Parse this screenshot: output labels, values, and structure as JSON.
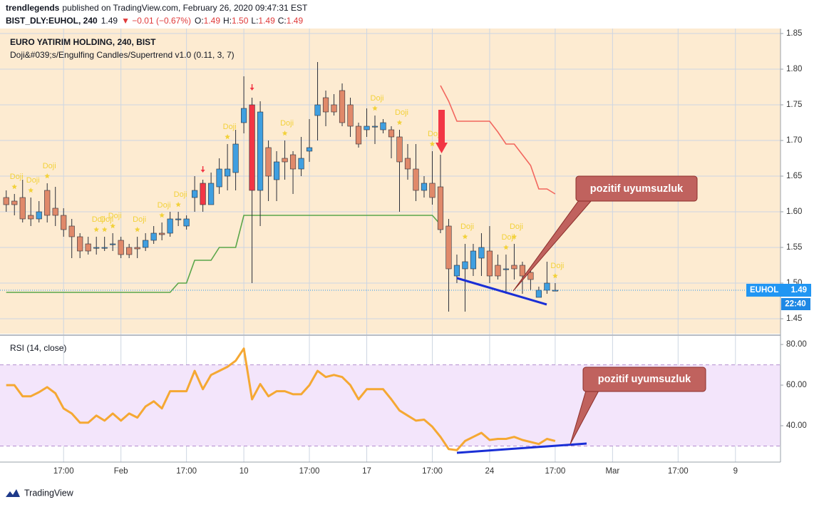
{
  "header": {
    "author": "trendlegends",
    "published": "published on TradingView.com, February 26, 2020 09:47:31 EST",
    "symbol": "BIST_DLY:EUHOL, 240",
    "last": "1.49",
    "change": "▼ −0.01 (−0.67%)",
    "ohlc": [
      {
        "label": "O:",
        "value": "1.49"
      },
      {
        "label": "H:",
        "value": "1.50"
      },
      {
        "label": "L:",
        "value": "1.49"
      },
      {
        "label": "C:",
        "value": "1.49"
      }
    ]
  },
  "chart_data": [
    {
      "type": "candlestick",
      "title": "EURO YATIRIM HOLDING, 240, BIST",
      "subtitle": "Doji&#039;s/Engulfing Candles/Supertrend v1.0 (0.11, 3, 7)",
      "categories": [
        null,
        null,
        null,
        null,
        null,
        null,
        null,
        "17:00",
        null,
        null,
        null,
        null,
        null,
        null,
        "Feb",
        null,
        null,
        null,
        null,
        null,
        null,
        null,
        "17:00",
        null,
        null,
        null,
        null,
        null,
        null,
        "10",
        null,
        null,
        null,
        null,
        null,
        null,
        null,
        "17:00",
        null,
        null,
        null,
        null,
        null,
        null,
        "17",
        null,
        null,
        null,
        null,
        null,
        null,
        null,
        "17:00",
        null,
        null,
        null,
        null,
        null,
        null,
        "24",
        null,
        null,
        null,
        null,
        null,
        null,
        null,
        "17:00",
        null,
        null,
        null,
        null,
        null,
        null,
        "Mar",
        null,
        null,
        null,
        null,
        null,
        null,
        null,
        "17:00",
        null,
        null,
        null,
        null,
        null,
        null,
        "9",
        null,
        null,
        null,
        null,
        null
      ],
      "open": [
        1.62,
        1.615,
        1.62,
        1.595,
        1.59,
        1.63,
        1.605,
        1.595,
        1.58,
        1.565,
        1.555,
        1.55,
        1.55,
        1.555,
        1.56,
        1.55,
        1.55,
        1.55,
        1.56,
        1.57,
        1.57,
        1.59,
        1.58,
        1.62,
        1.64,
        1.61,
        1.635,
        1.65,
        1.655,
        1.725,
        1.75,
        1.63,
        1.69,
        1.645,
        1.675,
        1.68,
        1.66,
        1.685,
        1.735,
        1.76,
        1.75,
        1.77,
        1.75,
        1.72,
        1.715,
        1.72,
        1.715,
        1.715,
        1.705,
        1.675,
        1.66,
        1.63,
        1.64,
        1.635,
        1.58,
        1.51,
        1.52,
        1.52,
        1.535,
        1.545,
        1.525,
        1.52,
        1.525,
        1.525,
        1.515,
        1.48,
        1.49,
        1.49,
        null,
        null,
        null,
        null,
        null,
        null,
        null,
        null,
        null,
        null,
        null,
        null,
        null,
        null,
        null,
        null,
        null,
        null,
        null,
        null,
        null,
        null,
        null,
        null,
        null,
        null,
        null
      ],
      "high": [
        1.63,
        1.625,
        1.645,
        1.62,
        1.615,
        1.64,
        1.635,
        1.605,
        1.59,
        1.57,
        1.565,
        1.565,
        1.565,
        1.57,
        1.565,
        1.555,
        1.565,
        1.57,
        1.58,
        1.585,
        1.6,
        1.6,
        1.595,
        1.65,
        1.645,
        1.655,
        1.675,
        1.695,
        1.715,
        1.79,
        1.76,
        1.755,
        1.7,
        1.685,
        1.7,
        1.685,
        1.705,
        1.73,
        1.81,
        1.77,
        1.765,
        1.78,
        1.76,
        1.725,
        1.745,
        1.735,
        1.73,
        1.72,
        1.715,
        1.695,
        1.695,
        1.65,
        1.685,
        1.68,
        1.59,
        1.54,
        1.555,
        1.555,
        1.57,
        1.58,
        1.54,
        1.54,
        1.555,
        1.53,
        1.52,
        1.495,
        1.53,
        1.5,
        null,
        null,
        null,
        null,
        null,
        null,
        null,
        null,
        null,
        null,
        null,
        null,
        null,
        null,
        null,
        null,
        null,
        null,
        null,
        null,
        null,
        null,
        null,
        null,
        null,
        null,
        null
      ],
      "low": [
        1.6,
        1.595,
        1.585,
        1.58,
        1.585,
        1.585,
        1.58,
        1.565,
        1.535,
        1.535,
        1.54,
        1.54,
        1.545,
        1.545,
        1.535,
        1.535,
        1.535,
        1.545,
        1.555,
        1.56,
        1.565,
        1.58,
        1.575,
        1.6,
        1.6,
        1.61,
        1.625,
        1.63,
        1.63,
        1.71,
        1.5,
        1.58,
        1.615,
        1.615,
        1.645,
        1.625,
        1.65,
        1.67,
        1.7,
        1.72,
        1.735,
        1.72,
        1.705,
        1.69,
        1.705,
        1.695,
        1.71,
        1.675,
        1.6,
        1.645,
        1.615,
        1.62,
        1.61,
        1.57,
        1.46,
        1.5,
        1.46,
        1.51,
        1.51,
        1.5,
        1.505,
        1.485,
        1.505,
        1.485,
        1.49,
        1.48,
        1.485,
        1.49,
        null,
        null,
        null,
        null,
        null,
        null,
        null,
        null,
        null,
        null,
        null,
        null,
        null,
        null,
        null,
        null,
        null,
        null,
        null,
        null,
        null,
        null,
        null,
        null,
        null,
        null,
        null
      ],
      "close": [
        1.61,
        1.61,
        1.59,
        1.59,
        1.6,
        1.595,
        1.595,
        1.575,
        1.565,
        1.545,
        1.545,
        1.55,
        1.55,
        1.555,
        1.54,
        1.54,
        1.548,
        1.56,
        1.57,
        1.568,
        1.59,
        1.59,
        1.59,
        1.63,
        1.61,
        1.64,
        1.66,
        1.66,
        1.695,
        1.745,
        1.63,
        1.74,
        1.65,
        1.67,
        1.67,
        1.66,
        1.675,
        1.69,
        1.75,
        1.74,
        1.74,
        1.725,
        1.72,
        1.695,
        1.72,
        1.72,
        1.725,
        1.705,
        1.67,
        1.66,
        1.63,
        1.64,
        1.62,
        1.575,
        1.52,
        1.525,
        1.53,
        1.545,
        1.55,
        1.51,
        1.51,
        1.52,
        1.52,
        1.51,
        1.505,
        1.49,
        1.5,
        1.49,
        null,
        null,
        null,
        null,
        null,
        null,
        null,
        null,
        null,
        null,
        null,
        null,
        null,
        null,
        null,
        null,
        null,
        null,
        null,
        null,
        null,
        null,
        null,
        null,
        null,
        null,
        null
      ],
      "supertrend_up": [
        1.487,
        1.487,
        1.487,
        1.487,
        1.487,
        1.487,
        1.487,
        1.487,
        1.487,
        1.487,
        1.487,
        1.487,
        1.487,
        1.487,
        1.487,
        1.487,
        1.487,
        1.487,
        1.487,
        1.487,
        1.487,
        1.5,
        1.5,
        1.532,
        1.532,
        1.532,
        1.55,
        1.55,
        1.55,
        1.595,
        1.595,
        1.595,
        1.595,
        1.595,
        1.595,
        1.595,
        1.595,
        1.595,
        1.595,
        1.595,
        1.595,
        1.595,
        1.595,
        1.595,
        1.595,
        1.595,
        1.595,
        1.595,
        1.595,
        1.595,
        1.595,
        1.595,
        1.595,
        1.582,
        null,
        null,
        null,
        null,
        null,
        null,
        null,
        null,
        null,
        null,
        null,
        null,
        null,
        null,
        null,
        null,
        null,
        null,
        null,
        null,
        null,
        null,
        null,
        null,
        null,
        null,
        null,
        null,
        null,
        null,
        null,
        null,
        null,
        null,
        null,
        null,
        null,
        null,
        null,
        null,
        null
      ],
      "supertrend_down": [
        null,
        null,
        null,
        null,
        null,
        null,
        null,
        null,
        null,
        null,
        null,
        null,
        null,
        null,
        null,
        null,
        null,
        null,
        null,
        null,
        null,
        null,
        null,
        null,
        null,
        null,
        null,
        null,
        null,
        null,
        null,
        null,
        null,
        null,
        null,
        null,
        null,
        null,
        null,
        null,
        null,
        null,
        null,
        null,
        null,
        null,
        null,
        null,
        null,
        null,
        null,
        null,
        null,
        1.777,
        1.755,
        1.727,
        1.727,
        1.727,
        1.727,
        1.727,
        1.712,
        1.695,
        1.695,
        1.68,
        1.665,
        1.632,
        1.632,
        1.625,
        null,
        null,
        null,
        null,
        null,
        null,
        null,
        null,
        null,
        null,
        null,
        null,
        null,
        null,
        null,
        null,
        null,
        null,
        null,
        null,
        null,
        null,
        null,
        null,
        null,
        null,
        null
      ],
      "doji": [
        null,
        "Doji",
        null,
        "Doji",
        null,
        "Doji",
        null,
        null,
        null,
        null,
        null,
        "Doji",
        "Doji",
        "Doji",
        null,
        null,
        "Doji",
        null,
        null,
        "Doji",
        null,
        "Doji",
        null,
        null,
        null,
        null,
        null,
        "Doji",
        null,
        null,
        null,
        null,
        null,
        null,
        "Doji",
        null,
        null,
        null,
        null,
        null,
        null,
        null,
        null,
        null,
        null,
        "Doji",
        null,
        null,
        "Doji",
        null,
        null,
        null,
        "Doji",
        null,
        null,
        null,
        "Doji",
        null,
        null,
        null,
        null,
        "Doji",
        "Doji",
        null,
        null,
        null,
        null,
        "Doji",
        null,
        null,
        null,
        null,
        null,
        null,
        null,
        null,
        null,
        null,
        null,
        null,
        null,
        null,
        null,
        null,
        null,
        null,
        null,
        null,
        null,
        null,
        null,
        null,
        null,
        null,
        null
      ],
      "engulfing": [
        24,
        30
      ],
      "up_color": "#3f9fe0",
      "down_color": "#e0896a",
      "engulfing_color": "#f23645",
      "supertrend_up_color": "#5aa64a",
      "supertrend_down_color": "#f2665e",
      "doji_color": "#f2d13a",
      "background": "#fdebd1",
      "grid": true,
      "ylim": [
        1.429,
        1.857
      ],
      "yticks": [
        1.45,
        {
          "value": 1.5,
          "label": "1.50"
        },
        1.55,
        {
          "value": 1.6,
          "label": "1.60"
        },
        1.65,
        {
          "value": 1.7,
          "label": "1.70"
        },
        1.75,
        {
          "value": 1.8,
          "label": "1.80"
        },
        1.85
      ],
      "last_price": 1.49,
      "price_tag": "EUHOL",
      "countdown": "22:40",
      "annotations": [
        {
          "text": "pozitif uyumsuzluk"
        }
      ]
    },
    {
      "type": "line",
      "title": "RSI (14, close)",
      "values": [
        60,
        60,
        54.5,
        54.5,
        56.5,
        59,
        56,
        48.5,
        46,
        41.5,
        41.5,
        45,
        42.5,
        46,
        42.5,
        46,
        44,
        49.5,
        52,
        48.5,
        57,
        57,
        57,
        67,
        58,
        65,
        67,
        69,
        72,
        78,
        53,
        60.5,
        54.5,
        57,
        57,
        55.5,
        55.5,
        60,
        67,
        64,
        65,
        64,
        60,
        53,
        58,
        58,
        58,
        53,
        47.5,
        45,
        42.5,
        43,
        39.5,
        34.5,
        28.5,
        28,
        32.5,
        34.5,
        36.5,
        33,
        33.5,
        33.5,
        34.5,
        33,
        32,
        31,
        33.5,
        32.5,
        null,
        null,
        null,
        null,
        null,
        null,
        null,
        null,
        null,
        null,
        null,
        null,
        null,
        null,
        null,
        null,
        null,
        null,
        null,
        null,
        null,
        null,
        null,
        null,
        null,
        null,
        null
      ],
      "color": "#f5a833",
      "bands": [
        30,
        70
      ],
      "band_color": "#f3e5fb",
      "ylim": [
        22.1,
        83.9
      ],
      "yticks": [
        {
          "value": 40,
          "label": "40.00"
        },
        {
          "value": 60,
          "label": "60.00"
        },
        {
          "value": 80,
          "label": "80.00"
        }
      ],
      "annotations": [
        {
          "text": "pozitif uyumsuzluk"
        }
      ]
    }
  ],
  "footer": {
    "brand": "TradingView"
  }
}
